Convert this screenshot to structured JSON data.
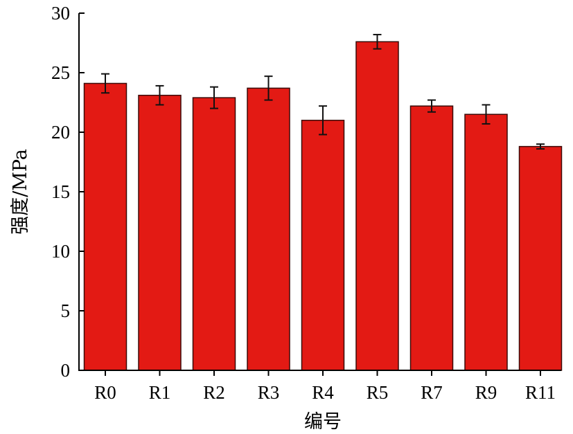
{
  "chart_data": {
    "type": "bar",
    "categories": [
      "R0",
      "R1",
      "R2",
      "R3",
      "R4",
      "R5",
      "R7",
      "R9",
      "R11"
    ],
    "series": [
      {
        "values": [
          24.1,
          23.1,
          22.9,
          23.7,
          21.0,
          27.6,
          22.2,
          21.5,
          18.8
        ],
        "errors": [
          0.8,
          0.8,
          0.9,
          1.0,
          1.2,
          0.6,
          0.5,
          0.8,
          0.2
        ]
      }
    ],
    "xlabel": "编号",
    "ylabel": "强度/MPa",
    "ylim": [
      0,
      30
    ],
    "yticks": [
      "0",
      "5",
      "10",
      "15",
      "20",
      "25",
      "30"
    ],
    "bar_color": "#e31a14",
    "grid": false,
    "legend": "none"
  }
}
